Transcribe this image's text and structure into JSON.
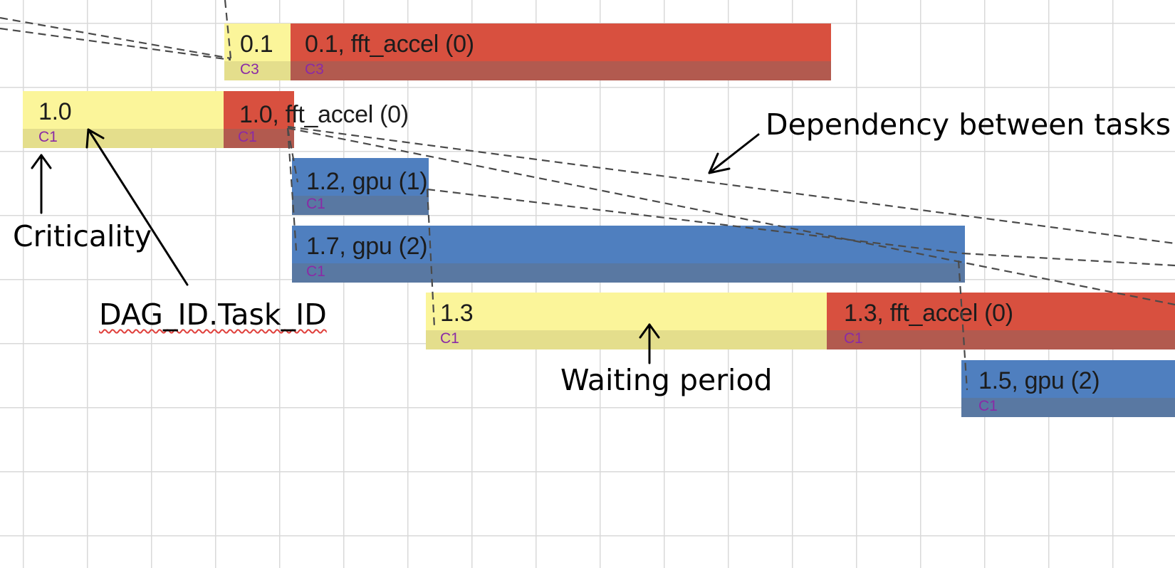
{
  "tasks": {
    "t01_wait": {
      "label": "0.1",
      "criticality": "C3"
    },
    "t01_exec": {
      "label": "0.1, fft_accel (0)",
      "criticality": "C3"
    },
    "t10_wait": {
      "label": "1.0",
      "criticality": "C1"
    },
    "t10_exec": {
      "label": "1.0, fft_accel (0)",
      "criticality": "C1"
    },
    "t12_exec": {
      "label": "1.2, gpu (1)",
      "criticality": "C1"
    },
    "t17_exec": {
      "label": "1.7, gpu (2)",
      "criticality": "C1"
    },
    "t13_wait": {
      "label": "1.3",
      "criticality": "C1"
    },
    "t13_exec": {
      "label": "1.3, fft_accel (0)",
      "criticality": "C1"
    },
    "t15_exec": {
      "label": "1.5, gpu (2)",
      "criticality": "C1"
    }
  },
  "annotations": {
    "dependency": "Dependency between tasks",
    "criticality": "Criticality",
    "dag_task_id": "DAG_ID.Task_ID",
    "waiting_period": "Waiting period"
  },
  "colors": {
    "waiting": "#fbf59a",
    "fft_accel": "#d8503f",
    "gpu": "#4f7fbf",
    "criticality_text": "#8a2aa6",
    "grid": "#d9d9d9"
  }
}
